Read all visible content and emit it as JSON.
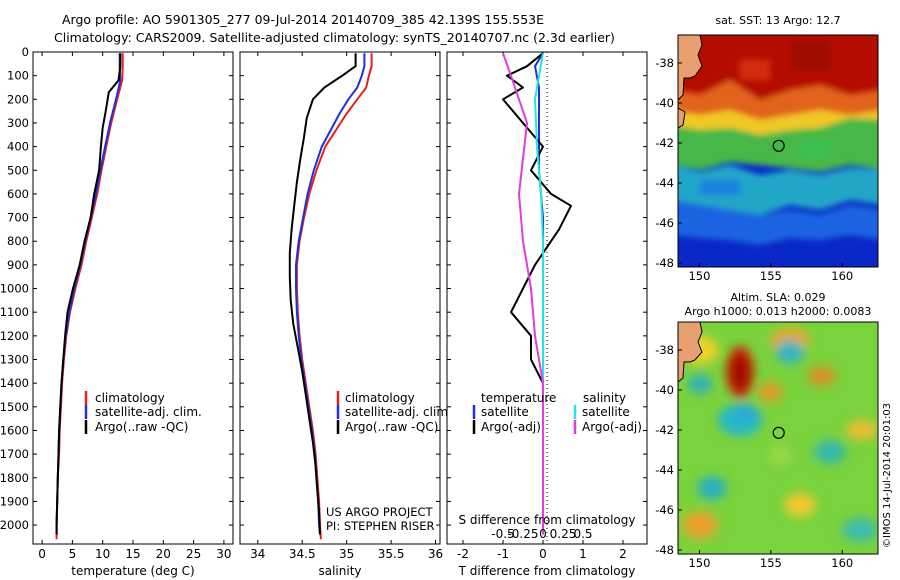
{
  "header": {
    "line1": "Argo profile: AO 5901305_277 09-Jul-2014 20140709_385 42.139S 155.553E",
    "line2": "Climatology: CARS2009. Satellite-adjusted climatology: synTS_20140707.nc (2.3d earlier)"
  },
  "colors": {
    "climatology": "#e8201c",
    "satellite": "#1f30e0",
    "argo": "#000000",
    "sat_cyan": "#22e4e8",
    "argo_magenta": "#e23be3"
  },
  "chart_data": [
    {
      "type": "line",
      "xlabel": "temperature (deg C)",
      "ylabel": "",
      "xlim": [
        -1.5,
        31.5
      ],
      "ylim": [
        0,
        2080
      ],
      "y_reversed": true,
      "xticks": [
        0,
        5,
        10,
        15,
        20,
        25,
        30
      ],
      "yticks": [
        0,
        100,
        200,
        300,
        400,
        500,
        600,
        700,
        800,
        900,
        1000,
        1100,
        1200,
        1300,
        1400,
        1500,
        1600,
        1700,
        1800,
        1900,
        2000
      ],
      "legend": [
        "climatology",
        "satellite-adj. clim.",
        "Argo(..raw -QC)"
      ],
      "legend_position": "lower-center",
      "series": [
        {
          "name": "climatology",
          "color": "#e8201c",
          "points": [
            [
              13.3,
              5
            ],
            [
              13.3,
              60
            ],
            [
              13.2,
              120
            ],
            [
              12.4,
              200
            ],
            [
              11.4,
              300
            ],
            [
              10.6,
              400
            ],
            [
              9.8,
              500
            ],
            [
              9.1,
              600
            ],
            [
              8.2,
              700
            ],
            [
              7.3,
              800
            ],
            [
              6.5,
              900
            ],
            [
              5.5,
              1000
            ],
            [
              4.6,
              1100
            ],
            [
              4.0,
              1200
            ],
            [
              3.6,
              1300
            ],
            [
              3.3,
              1400
            ],
            [
              3.1,
              1500
            ],
            [
              2.9,
              1600
            ],
            [
              2.8,
              1700
            ],
            [
              2.6,
              1800
            ],
            [
              2.5,
              1900
            ],
            [
              2.4,
              2000
            ],
            [
              2.4,
              2060
            ]
          ]
        },
        {
          "name": "satellite-adj. clim.",
          "color": "#1f30e0",
          "points": [
            [
              12.8,
              5
            ],
            [
              12.8,
              60
            ],
            [
              12.9,
              120
            ],
            [
              12.2,
              200
            ],
            [
              11.2,
              300
            ],
            [
              10.4,
              400
            ],
            [
              9.6,
              500
            ],
            [
              8.9,
              600
            ],
            [
              8.0,
              700
            ],
            [
              7.1,
              800
            ],
            [
              6.3,
              900
            ],
            [
              5.3,
              1000
            ],
            [
              4.5,
              1100
            ],
            [
              3.9,
              1200
            ],
            [
              3.5,
              1300
            ],
            [
              3.2,
              1400
            ],
            [
              3.0,
              1500
            ],
            [
              2.8,
              1600
            ],
            [
              2.7,
              1700
            ],
            [
              2.6,
              1800
            ],
            [
              2.5,
              1900
            ],
            [
              2.4,
              2000
            ],
            [
              2.4,
              2040
            ]
          ]
        },
        {
          "name": "Argo(..raw -QC)",
          "color": "#000000",
          "points": [
            [
              12.9,
              5
            ],
            [
              12.9,
              60
            ],
            [
              12.6,
              120
            ],
            [
              11.0,
              170
            ],
            [
              10.5,
              250
            ],
            [
              10.0,
              320
            ],
            [
              9.7,
              400
            ],
            [
              9.4,
              500
            ],
            [
              8.6,
              600
            ],
            [
              8.0,
              700
            ],
            [
              7.0,
              800
            ],
            [
              6.2,
              900
            ],
            [
              5.1,
              1000
            ],
            [
              4.2,
              1100
            ],
            [
              3.8,
              1200
            ],
            [
              3.5,
              1300
            ],
            [
              3.2,
              1400
            ],
            [
              3.0,
              1500
            ],
            [
              2.8,
              1600
            ],
            [
              2.7,
              1700
            ],
            [
              2.6,
              1800
            ],
            [
              2.5,
              1900
            ],
            [
              2.4,
              2000
            ],
            [
              2.4,
              2040
            ]
          ]
        }
      ]
    },
    {
      "type": "line",
      "xlabel": "salinity",
      "ylabel": "",
      "xlim": [
        33.8,
        36.05
      ],
      "ylim": [
        0,
        2080
      ],
      "y_reversed": true,
      "xticks": [
        34,
        34.5,
        35,
        35.5,
        36
      ],
      "xtick_labels": [
        "34",
        "34.5",
        "35",
        "35.5",
        "36"
      ],
      "legend": [
        "climatology",
        "satellite-adj. clim.",
        "Argo(..raw -QC)"
      ],
      "legend_position": "lower-center",
      "annotation": [
        "US ARGO PROJECT",
        "PI: STEPHEN RISER"
      ],
      "series": [
        {
          "name": "climatology",
          "color": "#e8201c",
          "points": [
            [
              35.28,
              5
            ],
            [
              35.28,
              60
            ],
            [
              35.25,
              100
            ],
            [
              35.22,
              150
            ],
            [
              35.12,
              200
            ],
            [
              35.0,
              260
            ],
            [
              34.88,
              330
            ],
            [
              34.76,
              400
            ],
            [
              34.66,
              500
            ],
            [
              34.58,
              600
            ],
            [
              34.52,
              700
            ],
            [
              34.47,
              800
            ],
            [
              34.44,
              900
            ],
            [
              34.44,
              1000
            ],
            [
              34.45,
              1100
            ],
            [
              34.47,
              1200
            ],
            [
              34.5,
              1300
            ],
            [
              34.54,
              1400
            ],
            [
              34.58,
              1500
            ],
            [
              34.62,
              1600
            ],
            [
              34.65,
              1700
            ],
            [
              34.67,
              1800
            ],
            [
              34.69,
              1900
            ],
            [
              34.7,
              2000
            ],
            [
              34.71,
              2060
            ]
          ]
        },
        {
          "name": "satellite-adj. clim.",
          "color": "#1f30e0",
          "points": [
            [
              35.2,
              5
            ],
            [
              35.2,
              60
            ],
            [
              35.17,
              100
            ],
            [
              35.12,
              150
            ],
            [
              35.02,
              200
            ],
            [
              34.92,
              260
            ],
            [
              34.82,
              330
            ],
            [
              34.72,
              400
            ],
            [
              34.63,
              500
            ],
            [
              34.56,
              600
            ],
            [
              34.51,
              700
            ],
            [
              34.46,
              800
            ],
            [
              34.43,
              900
            ],
            [
              34.43,
              1000
            ],
            [
              34.44,
              1100
            ],
            [
              34.46,
              1200
            ],
            [
              34.49,
              1300
            ],
            [
              34.53,
              1400
            ],
            [
              34.57,
              1500
            ],
            [
              34.61,
              1600
            ],
            [
              34.64,
              1700
            ],
            [
              34.66,
              1800
            ],
            [
              34.68,
              1900
            ],
            [
              34.69,
              2000
            ],
            [
              34.7,
              2040
            ]
          ]
        },
        {
          "name": "Argo(..raw -QC)",
          "color": "#000000",
          "points": [
            [
              35.1,
              5
            ],
            [
              35.1,
              60
            ],
            [
              34.95,
              100
            ],
            [
              34.75,
              150
            ],
            [
              34.62,
              200
            ],
            [
              34.55,
              280
            ],
            [
              34.52,
              360
            ],
            [
              34.48,
              450
            ],
            [
              34.44,
              550
            ],
            [
              34.41,
              650
            ],
            [
              34.38,
              750
            ],
            [
              34.36,
              850
            ],
            [
              34.36,
              950
            ],
            [
              34.37,
              1050
            ],
            [
              34.4,
              1150
            ],
            [
              34.45,
              1250
            ],
            [
              34.5,
              1350
            ],
            [
              34.54,
              1450
            ],
            [
              34.58,
              1550
            ],
            [
              34.62,
              1650
            ],
            [
              34.65,
              1750
            ],
            [
              34.67,
              1850
            ],
            [
              34.69,
              1950
            ],
            [
              34.7,
              2040
            ]
          ]
        }
      ]
    },
    {
      "type": "line",
      "xlabel": "T difference from climatology",
      "secondary_xlabel": "S difference from climatology",
      "ylabel": "",
      "xlim": [
        -2.4,
        2.6
      ],
      "ylim": [
        0,
        2080
      ],
      "y_reversed": true,
      "xticks": [
        -2,
        -1,
        0,
        1,
        2
      ],
      "secondary_xticks": [
        -0.5,
        -0.25,
        0,
        0.25,
        0.5
      ],
      "secondary_xtick_labels": [
        "-0.5",
        "-0.25",
        "0",
        "0.25",
        "0.5"
      ],
      "legend_titles": [
        "temperature",
        "salinity"
      ],
      "legend": [
        "satellite",
        "Argo(-adj)",
        "satellite",
        "Argo(-adj)"
      ],
      "legend_position": "lower-center",
      "series": [
        {
          "name": "temperature satellite",
          "color": "#1f30e0",
          "points": [
            [
              0,
              5
            ],
            [
              -0.2,
              60
            ],
            [
              -0.1,
              150
            ],
            [
              -0.1,
              300
            ],
            [
              -0.1,
              500
            ],
            [
              0.0,
              700
            ],
            [
              0.0,
              1000
            ],
            [
              0.0,
              1400
            ],
            [
              0.0,
              1600
            ],
            [
              0.0,
              2040
            ]
          ]
        },
        {
          "name": "temperature Argo(-adj)",
          "color": "#000000",
          "points": [
            [
              0,
              5
            ],
            [
              -0.4,
              60
            ],
            [
              -0.9,
              100
            ],
            [
              -0.5,
              150
            ],
            [
              -1.0,
              200
            ],
            [
              -0.5,
              300
            ],
            [
              0.0,
              400
            ],
            [
              -0.3,
              500
            ],
            [
              0.2,
              600
            ],
            [
              0.7,
              650
            ],
            [
              0.4,
              750
            ],
            [
              -0.2,
              900
            ],
            [
              -0.5,
              1000
            ],
            [
              -0.8,
              1100
            ],
            [
              -0.3,
              1200
            ],
            [
              -0.3,
              1300
            ],
            [
              0.0,
              1400
            ],
            [
              0.0,
              1600
            ],
            [
              0.0,
              2040
            ]
          ]
        },
        {
          "name": "salinity satellite",
          "color": "#22e4e8",
          "points": [
            [
              0,
              5
            ],
            [
              -0.1,
              100
            ],
            [
              -0.2,
              200
            ],
            [
              -0.15,
              400
            ],
            [
              -0.05,
              600
            ],
            [
              0.0,
              800
            ],
            [
              0.0,
              1000
            ],
            [
              0.0,
              1400
            ],
            [
              0.0,
              2040
            ]
          ]
        },
        {
          "name": "salinity Argo(-adj)",
          "color": "#e23be3",
          "points": [
            [
              -1.0,
              5
            ],
            [
              -0.8,
              100
            ],
            [
              -0.6,
              200
            ],
            [
              -0.4,
              300
            ],
            [
              -0.5,
              450
            ],
            [
              -0.6,
              600
            ],
            [
              -0.5,
              800
            ],
            [
              -0.3,
              1000
            ],
            [
              -0.2,
              1200
            ],
            [
              0.0,
              1400
            ],
            [
              0.0,
              2040
            ]
          ]
        }
      ]
    },
    {
      "type": "heatmap",
      "title": "sat. SST: 13 Argo: 12.7",
      "xlim": [
        148.5,
        162.5
      ],
      "ylim": [
        -48.2,
        -36.6
      ],
      "xticks": [
        150,
        155,
        160
      ],
      "yticks": [
        -38,
        -40,
        -42,
        -44,
        -46,
        -48
      ],
      "marker": [
        155.55,
        -42.14
      ]
    },
    {
      "type": "heatmap",
      "title": [
        "Altim. SLA: 0.029",
        "Argo h1000: 0.013 h2000: 0.0083"
      ],
      "xlim": [
        148.5,
        162.5
      ],
      "ylim": [
        -48.2,
        -36.6
      ],
      "xticks": [
        150,
        155,
        160
      ],
      "yticks": [
        -38,
        -40,
        -42,
        -44,
        -46,
        -48
      ],
      "marker": [
        155.55,
        -42.14
      ]
    }
  ],
  "side_stamp": "©IMOS 14-Jul-2014 20:01:03"
}
